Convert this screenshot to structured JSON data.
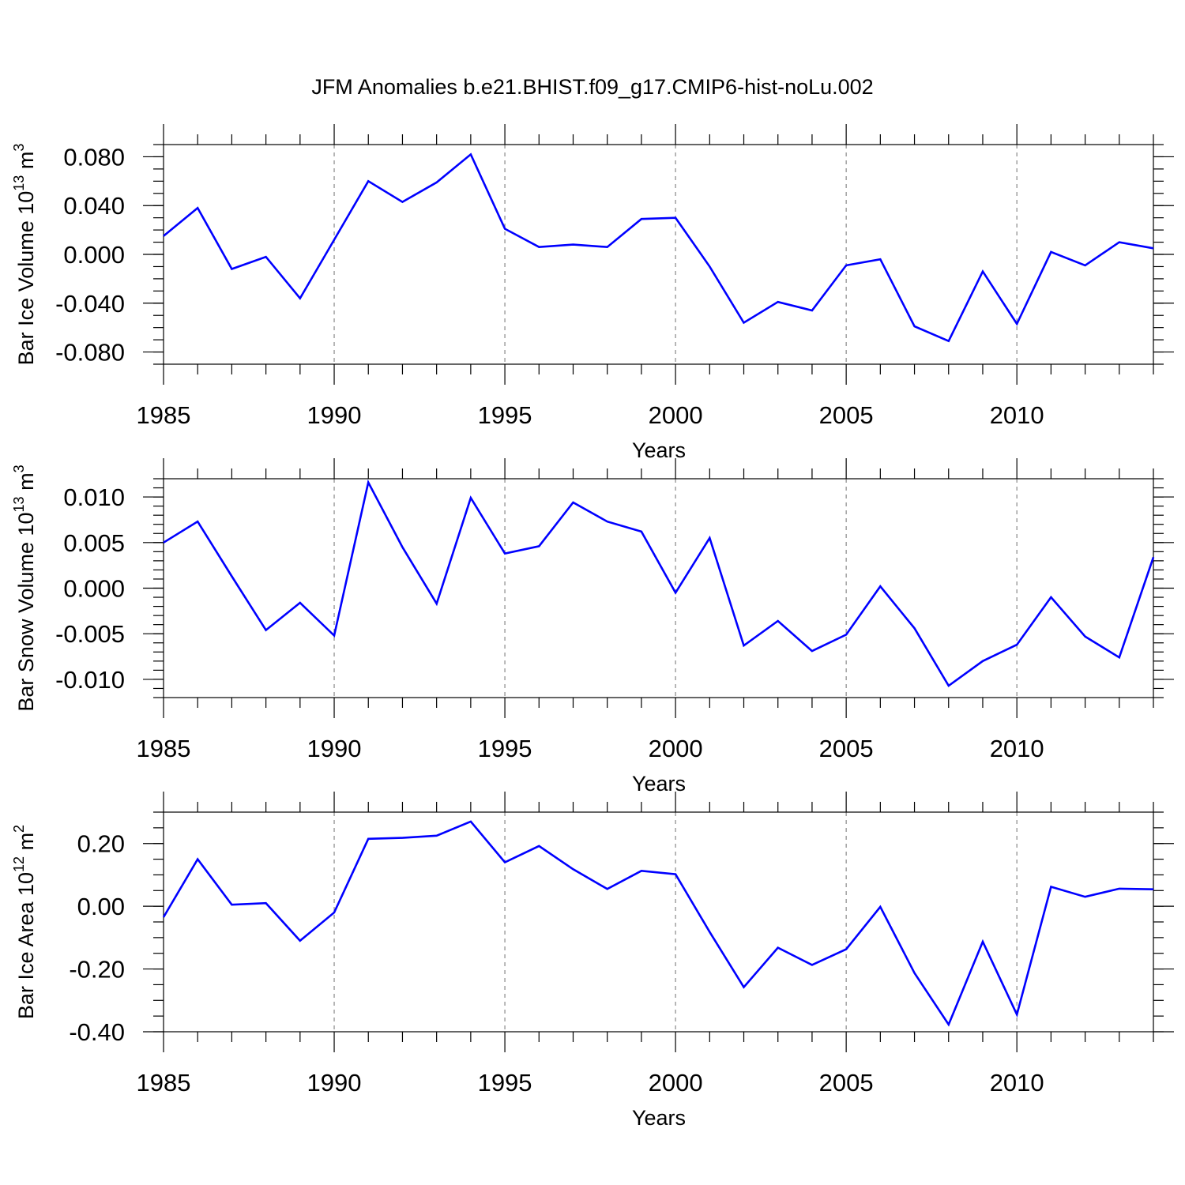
{
  "figure": {
    "title": "JFM Anomalies b.e21.BHIST.f09_g17.CMIP6-hist-noLu.002",
    "line_color": "#0000ff",
    "grid_color": "#888888"
  },
  "chart_data": [
    {
      "type": "line",
      "title": "JFM Anomalies b.e21.BHIST.f09_g17.CMIP6-hist-noLu.002",
      "xlabel": "Years",
      "ylabel": "Bar Ice Volume",
      "ylabel_unit_base": "10",
      "ylabel_unit_exp": "13",
      "ylabel_unit_tail": "m",
      "ylabel_unit_tail_exp": "3",
      "xlim": [
        1985,
        2014
      ],
      "ylim": [
        -0.09,
        0.09
      ],
      "xticks": [
        1985,
        1990,
        1995,
        2000,
        2005,
        2010
      ],
      "xtick_labels": [
        "1985",
        "1990",
        "1995",
        "2000",
        "2005",
        "2010"
      ],
      "yticks": [
        0.08,
        0.04,
        0.0,
        -0.04,
        -0.08
      ],
      "ytick_labels": [
        "0.080",
        "0.040",
        "0.000",
        "-0.040",
        "-0.080"
      ],
      "y_minor_step": 0.01,
      "grid_x": [
        1990,
        1995,
        2000,
        2005,
        2010
      ],
      "x": [
        1985,
        1986,
        1987,
        1988,
        1989,
        1990,
        1991,
        1992,
        1993,
        1994,
        1995,
        1996,
        1997,
        1998,
        1999,
        2000,
        2001,
        2002,
        2003,
        2004,
        2005,
        2006,
        2007,
        2008,
        2009,
        2010,
        2011,
        2012,
        2013,
        2014
      ],
      "series": [
        {
          "name": "Bar Ice Volume",
          "values": [
            0.015,
            0.038,
            -0.012,
            -0.002,
            -0.036,
            0.012,
            0.06,
            0.043,
            0.059,
            0.082,
            0.021,
            0.006,
            0.008,
            0.006,
            0.029,
            0.03,
            -0.01,
            -0.056,
            -0.039,
            -0.046,
            -0.009,
            -0.004,
            -0.059,
            -0.071,
            -0.014,
            -0.057,
            0.002,
            -0.009,
            0.01,
            0.005
          ]
        }
      ]
    },
    {
      "type": "line",
      "xlabel": "Years",
      "ylabel": "Bar Snow Volume",
      "ylabel_unit_base": "10",
      "ylabel_unit_exp": "13",
      "ylabel_unit_tail": "m",
      "ylabel_unit_tail_exp": "3",
      "xlim": [
        1985,
        2014
      ],
      "ylim": [
        -0.012,
        0.012
      ],
      "xticks": [
        1985,
        1990,
        1995,
        2000,
        2005,
        2010
      ],
      "xtick_labels": [
        "1985",
        "1990",
        "1995",
        "2000",
        "2005",
        "2010"
      ],
      "yticks": [
        0.01,
        0.005,
        0.0,
        -0.005,
        -0.01
      ],
      "ytick_labels": [
        "0.010",
        "0.005",
        "0.000",
        "-0.005",
        "-0.010"
      ],
      "y_minor_step": 0.001,
      "grid_x": [
        1990,
        1995,
        2000,
        2005,
        2010
      ],
      "x": [
        1985,
        1986,
        1987,
        1988,
        1989,
        1990,
        1991,
        1992,
        1993,
        1994,
        1995,
        1996,
        1997,
        1998,
        1999,
        2000,
        2001,
        2002,
        2003,
        2004,
        2005,
        2006,
        2007,
        2008,
        2009,
        2010,
        2011,
        2012,
        2013,
        2014
      ],
      "series": [
        {
          "name": "Bar Snow Volume",
          "values": [
            0.005,
            0.0073,
            0.0013,
            -0.0046,
            -0.0016,
            -0.0052,
            0.0116,
            0.0045,
            -0.0017,
            0.0099,
            0.0038,
            0.0046,
            0.0094,
            0.0073,
            0.0062,
            -0.0005,
            0.0055,
            -0.0063,
            -0.0036,
            -0.0069,
            -0.0051,
            0.0002,
            -0.0044,
            -0.0107,
            -0.008,
            -0.0062,
            -0.001,
            -0.0053,
            -0.0076,
            0.0034
          ]
        }
      ]
    },
    {
      "type": "line",
      "xlabel": "Years",
      "ylabel": "Bar Ice Area",
      "ylabel_unit_base": "10",
      "ylabel_unit_exp": "12",
      "ylabel_unit_tail": "m",
      "ylabel_unit_tail_exp": "2",
      "xlim": [
        1985,
        2014
      ],
      "ylim": [
        -0.4,
        0.3
      ],
      "xticks": [
        1985,
        1990,
        1995,
        2000,
        2005,
        2010
      ],
      "xtick_labels": [
        "1985",
        "1990",
        "1995",
        "2000",
        "2005",
        "2010"
      ],
      "yticks": [
        0.2,
        0.0,
        -0.2,
        -0.4
      ],
      "ytick_labels": [
        "0.20",
        "0.00",
        "-0.20",
        "-0.40"
      ],
      "y_minor_step": 0.05,
      "grid_x": [
        1990,
        1995,
        2000,
        2005,
        2010
      ],
      "x": [
        1985,
        1986,
        1987,
        1988,
        1989,
        1990,
        1991,
        1992,
        1993,
        1994,
        1995,
        1996,
        1997,
        1998,
        1999,
        2000,
        2001,
        2002,
        2003,
        2004,
        2005,
        2006,
        2007,
        2008,
        2009,
        2010,
        2011,
        2012,
        2013,
        2014
      ],
      "series": [
        {
          "name": "Bar Ice Area",
          "values": [
            -0.035,
            0.15,
            0.005,
            0.01,
            -0.11,
            -0.02,
            0.215,
            0.218,
            0.225,
            0.27,
            0.14,
            0.192,
            0.118,
            0.055,
            0.113,
            0.102,
            -0.082,
            -0.258,
            -0.132,
            -0.187,
            -0.137,
            -0.002,
            -0.213,
            -0.377,
            -0.113,
            -0.345,
            0.062,
            0.03,
            0.056,
            0.054
          ]
        }
      ]
    }
  ]
}
